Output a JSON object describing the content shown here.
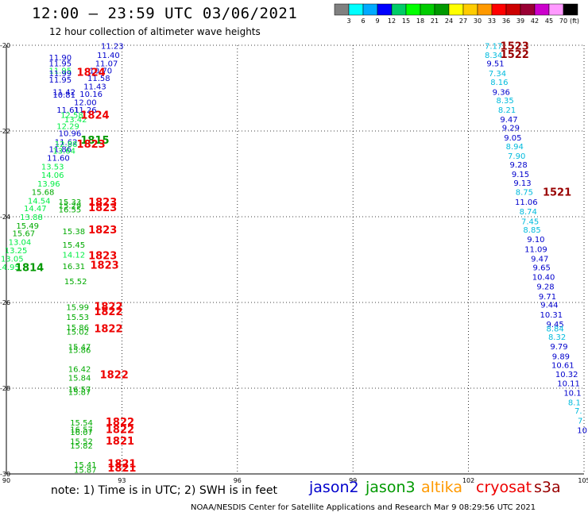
{
  "header": {
    "title": "12:00 — 23:59 UTC 03/06/2021",
    "subtitle": "12 hour collection of altimeter wave heights"
  },
  "scale": {
    "labels": [
      "3",
      "6",
      "9",
      "12",
      "15",
      "18",
      "21",
      "24",
      "27",
      "30",
      "33",
      "36",
      "39",
      "42",
      "45",
      "70"
    ],
    "unit": "(ft)",
    "colors": [
      "#808080",
      "#00ffff",
      "#00aaff",
      "#0000ff",
      "#00cc66",
      "#00ff00",
      "#00cc00",
      "#009900",
      "#ffff00",
      "#ffcc00",
      "#ff9900",
      "#ff0000",
      "#cc0000",
      "#990033",
      "#cc00cc",
      "#ff99ff",
      "#000000"
    ]
  },
  "axes": {
    "x_ticks": [
      "90",
      "93",
      "96",
      "99",
      "102",
      "105"
    ],
    "y_ticks": [
      "-20",
      "-22",
      "-24",
      "-26",
      "-28",
      "-30"
    ]
  },
  "footer": {
    "note": "note: 1) Time is in UTC; 2) SWH is in feet",
    "credit": "NOAA/NESDIS Center for Satellite Applications and Research   Mar  9 08:29:56 UTC 2021",
    "satellites": [
      {
        "name": "jason2",
        "color": "#0000cc"
      },
      {
        "name": "jason3",
        "color": "#009900"
      },
      {
        "name": "altika",
        "color": "#ff9900"
      },
      {
        "name": "cryosat",
        "color": "#ee0000"
      },
      {
        "name": "s3a",
        "color": "#990000"
      }
    ]
  },
  "chart_data": {
    "type": "scatter",
    "xlim": [
      90,
      105
    ],
    "ylim": [
      -30,
      -20
    ],
    "grid": true,
    "wave_heights": [
      {
        "v": "11.23",
        "lon": 92.75,
        "lat": -20.01,
        "c": "#0000cc"
      },
      {
        "v": "11.40",
        "lon": 92.65,
        "lat": -20.22,
        "c": "#0000cc"
      },
      {
        "v": "11.90",
        "lon": 91.4,
        "lat": -20.28,
        "c": "#0000cc"
      },
      {
        "v": "11.95",
        "lon": 91.4,
        "lat": -20.42,
        "c": "#0000cc"
      },
      {
        "v": "11.07",
        "lon": 92.6,
        "lat": -20.42,
        "c": "#0000cc"
      },
      {
        "v": "11.95",
        "lon": 91.4,
        "lat": -20.58,
        "c": "#00ee44"
      },
      {
        "v": "11.99",
        "lon": 91.4,
        "lat": -20.65,
        "c": "#0000cc"
      },
      {
        "v": "10.70",
        "lon": 92.45,
        "lat": -20.58,
        "c": "#0000cc"
      },
      {
        "v": "11.58",
        "lon": 92.4,
        "lat": -20.76,
        "c": "#0000cc"
      },
      {
        "v": "11.95",
        "lon": 91.4,
        "lat": -20.8,
        "c": "#0000cc"
      },
      {
        "v": "11.43",
        "lon": 92.3,
        "lat": -20.95,
        "c": "#0000cc"
      },
      {
        "v": "11.42",
        "lon": 91.5,
        "lat": -21.08,
        "c": "#0000cc"
      },
      {
        "v": "10.81",
        "lon": 91.5,
        "lat": -21.15,
        "c": "#0000cc"
      },
      {
        "v": "10.16",
        "lon": 92.2,
        "lat": -21.13,
        "c": "#0000cc"
      },
      {
        "v": "12.00",
        "lon": 92.05,
        "lat": -21.32,
        "c": "#0000cc"
      },
      {
        "v": "11.61",
        "lon": 91.6,
        "lat": -21.5,
        "c": "#0000cc"
      },
      {
        "v": "11.26",
        "lon": 92.05,
        "lat": -21.5,
        "c": "#0000cc"
      },
      {
        "v": "12.58",
        "lon": 91.7,
        "lat": -21.62,
        "c": "#00ee44"
      },
      {
        "v": "13.42",
        "lon": 91.8,
        "lat": -21.72,
        "c": "#00ee44"
      },
      {
        "v": "12.29",
        "lon": 91.6,
        "lat": -21.88,
        "c": "#00ee44"
      },
      {
        "v": "10.96",
        "lon": 91.65,
        "lat": -22.05,
        "c": "#0000cc"
      },
      {
        "v": "11.62",
        "lon": 91.55,
        "lat": -22.25,
        "c": "#0000cc"
      },
      {
        "v": "12.88",
        "lon": 91.55,
        "lat": -22.3,
        "c": "#00ee44"
      },
      {
        "v": "11.86",
        "lon": 91.4,
        "lat": -22.42,
        "c": "#0000cc"
      },
      {
        "v": "13.64",
        "lon": 91.5,
        "lat": -22.45,
        "c": "#00ee44"
      },
      {
        "v": "11.60",
        "lon": 91.35,
        "lat": -22.62,
        "c": "#0000cc"
      },
      {
        "v": "13.53",
        "lon": 91.2,
        "lat": -22.82,
        "c": "#00ee44"
      },
      {
        "v": "14.06",
        "lon": 91.2,
        "lat": -23.02,
        "c": "#00ee44"
      },
      {
        "v": "13.96",
        "lon": 91.1,
        "lat": -23.22,
        "c": "#00ee44"
      },
      {
        "v": "15.68",
        "lon": 90.95,
        "lat": -23.42,
        "c": "#00aa00"
      },
      {
        "v": "14.54",
        "lon": 90.85,
        "lat": -23.62,
        "c": "#00ee44"
      },
      {
        "v": "14.47",
        "lon": 90.75,
        "lat": -23.8,
        "c": "#00ee44"
      },
      {
        "v": "13.88",
        "lon": 90.65,
        "lat": -24.0,
        "c": "#00ee44"
      },
      {
        "v": "15.49",
        "lon": 90.55,
        "lat": -24.2,
        "c": "#00aa00"
      },
      {
        "v": "15.67",
        "lon": 90.45,
        "lat": -24.38,
        "c": "#00aa00"
      },
      {
        "v": "13.04",
        "lon": 90.35,
        "lat": -24.58,
        "c": "#00ee44"
      },
      {
        "v": "13.25",
        "lon": 90.25,
        "lat": -24.78,
        "c": "#00ee44"
      },
      {
        "v": "13.05",
        "lon": 90.15,
        "lat": -24.97,
        "c": "#00ee44"
      },
      {
        "v": "14.95",
        "lon": 90.05,
        "lat": -25.17,
        "c": "#00ee44"
      },
      {
        "v": "15.33",
        "lon": 91.65,
        "lat": -23.65,
        "c": "#00aa00"
      },
      {
        "v": "15.29",
        "lon": 91.65,
        "lat": -23.73,
        "c": "#00aa00"
      },
      {
        "v": "16.55",
        "lon": 91.65,
        "lat": -23.82,
        "c": "#00aa00"
      },
      {
        "v": "15.38",
        "lon": 91.75,
        "lat": -24.33,
        "c": "#00aa00"
      },
      {
        "v": "15.45",
        "lon": 91.75,
        "lat": -24.65,
        "c": "#00aa00"
      },
      {
        "v": "14.12",
        "lon": 91.75,
        "lat": -24.88,
        "c": "#00ee44"
      },
      {
        "v": "16.31",
        "lon": 91.75,
        "lat": -25.15,
        "c": "#00aa00"
      },
      {
        "v": "15.52",
        "lon": 91.8,
        "lat": -25.5,
        "c": "#00aa00"
      },
      {
        "v": "15.99",
        "lon": 91.85,
        "lat": -26.1,
        "c": "#00aa00"
      },
      {
        "v": "15.53",
        "lon": 91.85,
        "lat": -26.33,
        "c": "#00aa00"
      },
      {
        "v": "15.86",
        "lon": 91.85,
        "lat": -26.57,
        "c": "#00aa00"
      },
      {
        "v": "15.02",
        "lon": 91.85,
        "lat": -26.68,
        "c": "#00aa00"
      },
      {
        "v": "15.47",
        "lon": 91.9,
        "lat": -27.03,
        "c": "#00aa00"
      },
      {
        "v": "15.86",
        "lon": 91.9,
        "lat": -27.1,
        "c": "#00aa00"
      },
      {
        "v": "16.42",
        "lon": 91.9,
        "lat": -27.55,
        "c": "#00aa00"
      },
      {
        "v": "15.84",
        "lon": 91.9,
        "lat": -27.75,
        "c": "#00aa00"
      },
      {
        "v": "16.57",
        "lon": 91.9,
        "lat": -28.02,
        "c": "#00aa00"
      },
      {
        "v": "15.87",
        "lon": 91.9,
        "lat": -28.08,
        "c": "#00aa00"
      },
      {
        "v": "15.54",
        "lon": 91.95,
        "lat": -28.8,
        "c": "#00aa00"
      },
      {
        "v": "16.57",
        "lon": 91.95,
        "lat": -28.95,
        "c": "#00aa00"
      },
      {
        "v": "16.07",
        "lon": 91.95,
        "lat": -29.02,
        "c": "#00aa00"
      },
      {
        "v": "15.52",
        "lon": 91.95,
        "lat": -29.23,
        "c": "#00aa00"
      },
      {
        "v": "15.82",
        "lon": 91.95,
        "lat": -29.33,
        "c": "#00aa00"
      },
      {
        "v": "15.41",
        "lon": 92.05,
        "lat": -29.78,
        "c": "#00aa00"
      },
      {
        "v": "15.87",
        "lon": 92.05,
        "lat": -29.9,
        "c": "#00aa00"
      },
      {
        "v": "7.17",
        "lon": 102.65,
        "lat": -20.01,
        "c": "#00bbdd"
      },
      {
        "v": "8.34",
        "lon": 102.65,
        "lat": -20.22,
        "c": "#00bbdd"
      },
      {
        "v": "9.51",
        "lon": 102.7,
        "lat": -20.42,
        "c": "#0000cc"
      },
      {
        "v": "7.34",
        "lon": 102.75,
        "lat": -20.65,
        "c": "#00bbdd"
      },
      {
        "v": "8.16",
        "lon": 102.8,
        "lat": -20.85,
        "c": "#00bbdd"
      },
      {
        "v": "9.36",
        "lon": 102.85,
        "lat": -21.08,
        "c": "#0000cc"
      },
      {
        "v": "8.35",
        "lon": 102.95,
        "lat": -21.28,
        "c": "#00bbdd"
      },
      {
        "v": "8.21",
        "lon": 103.0,
        "lat": -21.5,
        "c": "#00bbdd"
      },
      {
        "v": "9.47",
        "lon": 103.05,
        "lat": -21.72,
        "c": "#0000cc"
      },
      {
        "v": "9.29",
        "lon": 103.1,
        "lat": -21.92,
        "c": "#0000cc"
      },
      {
        "v": "9.05",
        "lon": 103.15,
        "lat": -22.15,
        "c": "#0000cc"
      },
      {
        "v": "8.94",
        "lon": 103.2,
        "lat": -22.35,
        "c": "#00bbdd"
      },
      {
        "v": "7.90",
        "lon": 103.25,
        "lat": -22.57,
        "c": "#00bbdd"
      },
      {
        "v": "9.28",
        "lon": 103.3,
        "lat": -22.78,
        "c": "#0000cc"
      },
      {
        "v": "9.15",
        "lon": 103.35,
        "lat": -23.0,
        "c": "#0000cc"
      },
      {
        "v": "9.13",
        "lon": 103.4,
        "lat": -23.2,
        "c": "#0000cc"
      },
      {
        "v": "8.75",
        "lon": 103.45,
        "lat": -23.42,
        "c": "#00bbdd"
      },
      {
        "v": "11.06",
        "lon": 103.5,
        "lat": -23.65,
        "c": "#0000cc"
      },
      {
        "v": "8.74",
        "lon": 103.55,
        "lat": -23.87,
        "c": "#00bbdd"
      },
      {
        "v": "7.45",
        "lon": 103.6,
        "lat": -24.1,
        "c": "#00bbdd"
      },
      {
        "v": "8.85",
        "lon": 103.65,
        "lat": -24.3,
        "c": "#00bbdd"
      },
      {
        "v": "9.10",
        "lon": 103.75,
        "lat": -24.52,
        "c": "#0000cc"
      },
      {
        "v": "11.09",
        "lon": 103.75,
        "lat": -24.75,
        "c": "#0000cc"
      },
      {
        "v": "9.47",
        "lon": 103.85,
        "lat": -24.97,
        "c": "#0000cc"
      },
      {
        "v": "9.65",
        "lon": 103.9,
        "lat": -25.18,
        "c": "#0000cc"
      },
      {
        "v": "10.40",
        "lon": 103.95,
        "lat": -25.4,
        "c": "#0000cc"
      },
      {
        "v": "9.28",
        "lon": 104.0,
        "lat": -25.62,
        "c": "#0000cc"
      },
      {
        "v": "9.71",
        "lon": 104.05,
        "lat": -25.85,
        "c": "#0000cc"
      },
      {
        "v": "9.44",
        "lon": 104.1,
        "lat": -26.05,
        "c": "#0000cc"
      },
      {
        "v": "10.31",
        "lon": 104.15,
        "lat": -26.28,
        "c": "#0000cc"
      },
      {
        "v": "9.45",
        "lon": 104.25,
        "lat": -26.5,
        "c": "#0000cc"
      },
      {
        "v": "8.84",
        "lon": 104.25,
        "lat": -26.6,
        "c": "#00bbdd"
      },
      {
        "v": "8.32",
        "lon": 104.3,
        "lat": -26.8,
        "c": "#00bbdd"
      },
      {
        "v": "9.79",
        "lon": 104.35,
        "lat": -27.02,
        "c": "#0000cc"
      },
      {
        "v": "9.89",
        "lon": 104.4,
        "lat": -27.25,
        "c": "#0000cc"
      },
      {
        "v": "10.61",
        "lon": 104.45,
        "lat": -27.45,
        "c": "#0000cc"
      },
      {
        "v": "10.32",
        "lon": 104.55,
        "lat": -27.67,
        "c": "#0000cc"
      },
      {
        "v": "10.11",
        "lon": 104.6,
        "lat": -27.88,
        "c": "#0000cc"
      },
      {
        "v": "10.1",
        "lon": 104.7,
        "lat": -28.1,
        "c": "#0000cc"
      },
      {
        "v": "8.1",
        "lon": 104.75,
        "lat": -28.32,
        "c": "#00bbdd"
      },
      {
        "v": "7.",
        "lon": 104.85,
        "lat": -28.52,
        "c": "#00bbdd"
      },
      {
        "v": "7",
        "lon": 104.9,
        "lat": -28.75,
        "c": "#00bbdd"
      },
      {
        "v": "10",
        "lon": 104.95,
        "lat": -28.97,
        "c": "#0000cc"
      }
    ],
    "time_labels": [
      {
        "v": "1824",
        "lon": 92.2,
        "lat": -20.62,
        "c": "#ee0000"
      },
      {
        "v": "1824",
        "lon": 92.3,
        "lat": -21.62,
        "c": "#ee0000"
      },
      {
        "v": "1815",
        "lon": 92.3,
        "lat": -22.2,
        "c": "#009900"
      },
      {
        "v": "1823",
        "lon": 92.2,
        "lat": -22.3,
        "c": "#ee0000"
      },
      {
        "v": "1823",
        "lon": 92.5,
        "lat": -23.65,
        "c": "#ee0000"
      },
      {
        "v": "1823",
        "lon": 92.5,
        "lat": -23.78,
        "c": "#ee0000"
      },
      {
        "v": "1823",
        "lon": 92.5,
        "lat": -24.3,
        "c": "#ee0000"
      },
      {
        "v": "1823",
        "lon": 92.5,
        "lat": -24.9,
        "c": "#ee0000"
      },
      {
        "v": "1823",
        "lon": 92.55,
        "lat": -25.12,
        "c": "#ee0000"
      },
      {
        "v": "1814",
        "lon": 90.6,
        "lat": -25.18,
        "c": "#009900"
      },
      {
        "v": "1822",
        "lon": 92.65,
        "lat": -26.08,
        "c": "#ee0000"
      },
      {
        "v": "1822",
        "lon": 92.65,
        "lat": -26.2,
        "c": "#ee0000"
      },
      {
        "v": "1822",
        "lon": 92.65,
        "lat": -26.6,
        "c": "#ee0000"
      },
      {
        "v": "1822",
        "lon": 92.8,
        "lat": -27.68,
        "c": "#ee0000"
      },
      {
        "v": "1822",
        "lon": 92.95,
        "lat": -28.78,
        "c": "#ee0000"
      },
      {
        "v": "1822",
        "lon": 92.95,
        "lat": -28.95,
        "c": "#ee0000"
      },
      {
        "v": "1821",
        "lon": 92.95,
        "lat": -29.22,
        "c": "#ee0000"
      },
      {
        "v": "1821",
        "lon": 93.0,
        "lat": -29.75,
        "c": "#ee0000"
      },
      {
        "v": "1821",
        "lon": 93.0,
        "lat": -29.85,
        "c": "#ee0000"
      },
      {
        "v": "1523",
        "lon": 103.2,
        "lat": -20.01,
        "c": "#990000"
      },
      {
        "v": "1522",
        "lon": 103.2,
        "lat": -20.2,
        "c": "#990000"
      },
      {
        "v": "1521",
        "lon": 104.3,
        "lat": -23.42,
        "c": "#990000"
      }
    ]
  }
}
